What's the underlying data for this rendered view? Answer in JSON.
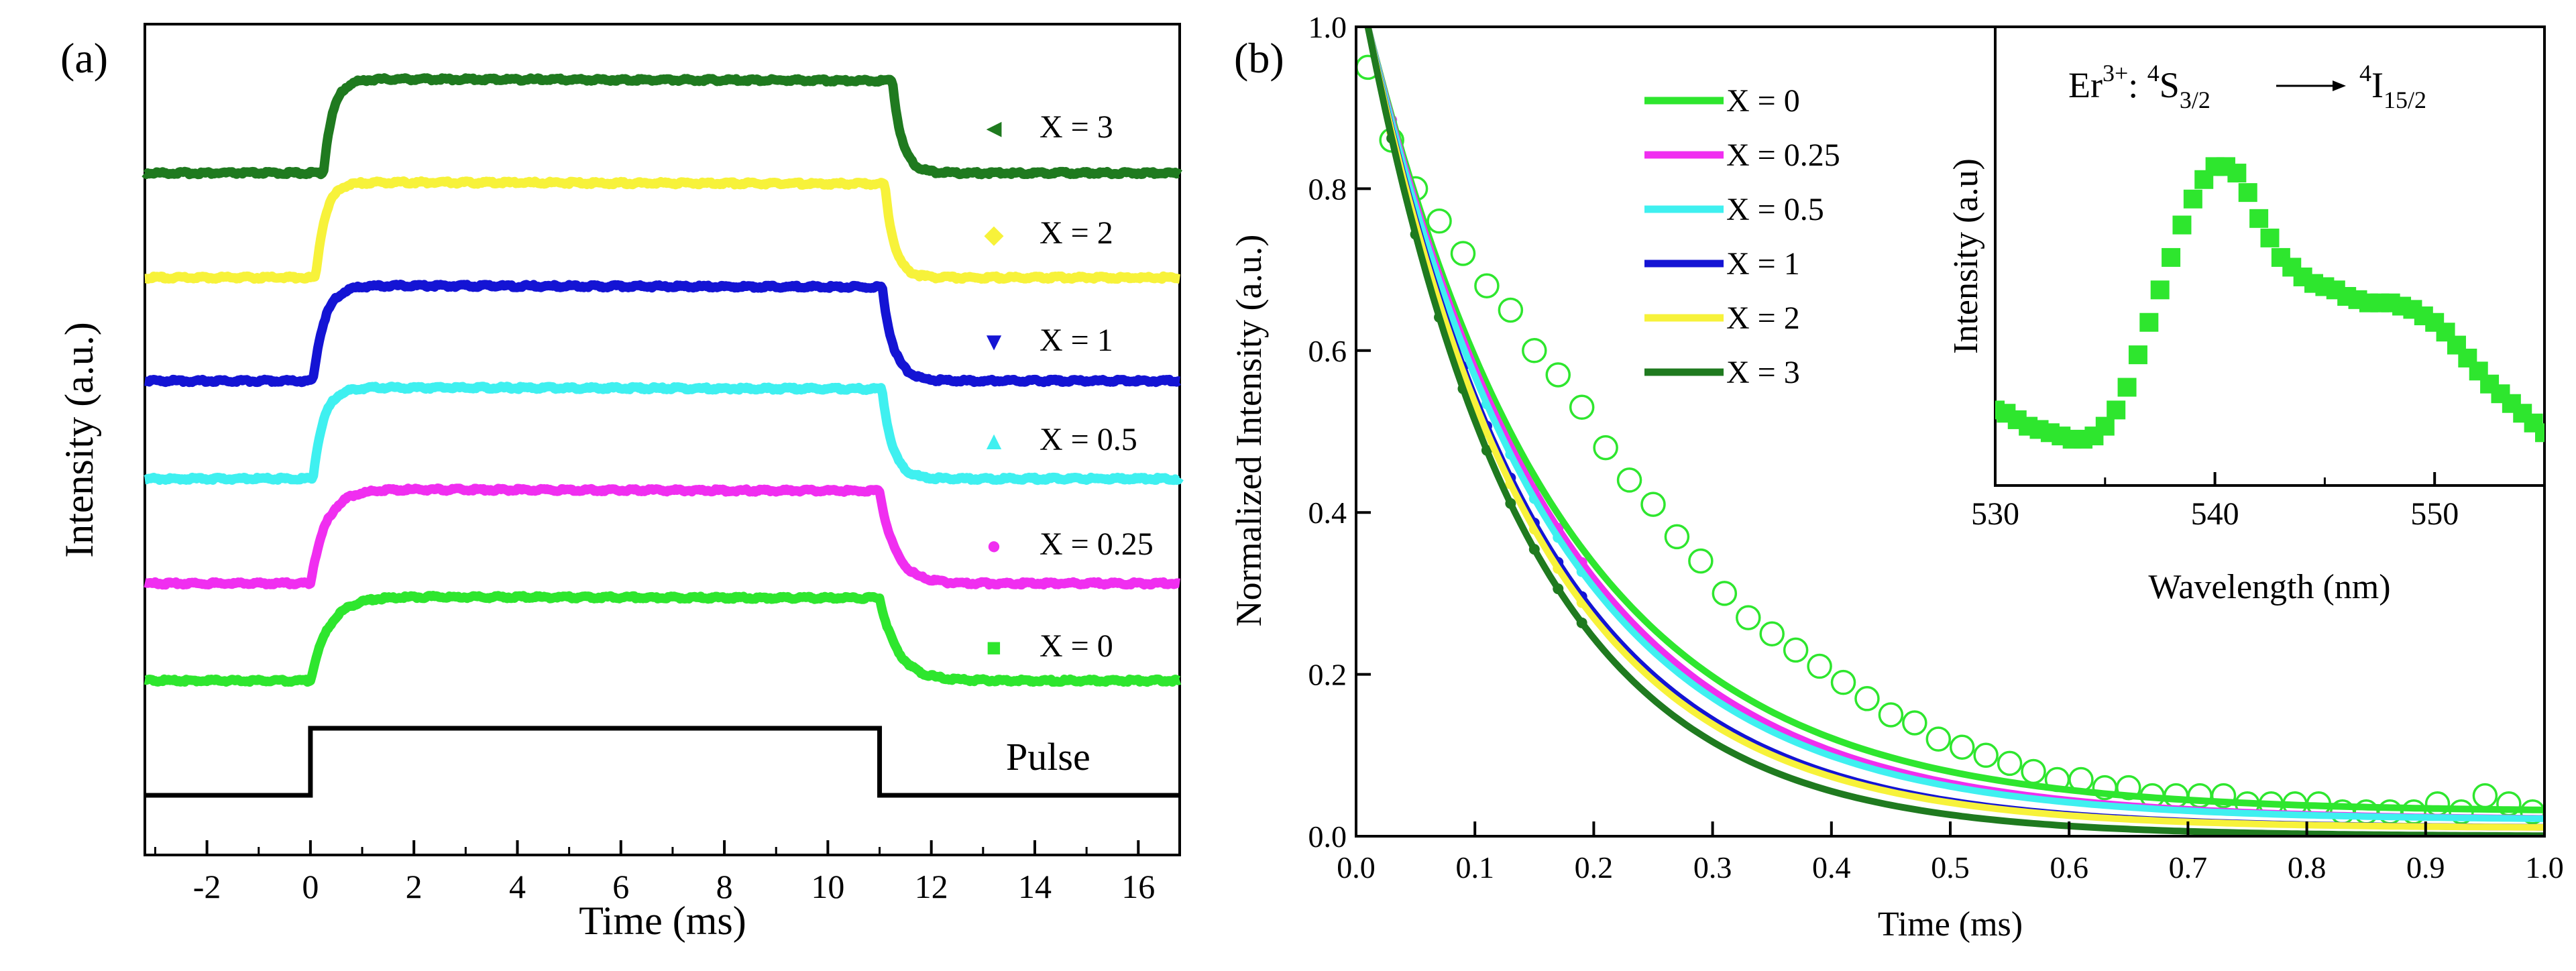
{
  "chart_data": [
    {
      "panel": "(a)",
      "type": "line",
      "title": "",
      "xlabel": "Time (ms)",
      "ylabel": "Intensity (a.u.)",
      "xlim": [
        -3.2,
        16.8
      ],
      "xticks": [
        -2,
        0,
        2,
        4,
        6,
        8,
        10,
        12,
        14,
        16
      ],
      "pulse": {
        "label": "Pulse",
        "on": 0,
        "off": 11,
        "color": "#000000"
      },
      "series": [
        {
          "name": "X = 3",
          "legend": "X = 3",
          "marker": "◄",
          "color": "#1f7a1f",
          "rise_start": 0.25,
          "fall_start": 11.25,
          "tau": 0.18
        },
        {
          "name": "X = 2",
          "legend": "X = 2",
          "marker": "◆",
          "color": "#f7f23a",
          "rise_start": 0.1,
          "fall_start": 11.1,
          "tau": 0.18
        },
        {
          "name": "X = 1",
          "legend": "X = 1",
          "marker": "▼",
          "color": "#1414d4",
          "rise_start": 0.05,
          "fall_start": 11.05,
          "tau": 0.22
        },
        {
          "name": "X = 0.5",
          "legend": "X = 0.5",
          "marker": "▲",
          "color": "#3ff0f0",
          "rise_start": 0.05,
          "fall_start": 11.05,
          "tau": 0.2
        },
        {
          "name": "X = 0.25",
          "legend": "X = 0.25",
          "marker": "●",
          "color": "#f02ef0",
          "rise_start": 0.0,
          "fall_start": 11.0,
          "tau": 0.3
        },
        {
          "name": "X = 0",
          "legend": "X = 0",
          "marker": "■",
          "color": "#2ee62e",
          "rise_start": 0.0,
          "fall_start": 11.0,
          "tau": 0.35
        }
      ]
    },
    {
      "panel": "(b)",
      "type": "line",
      "title": "",
      "xlabel": "Time (ms)",
      "ylabel": "Normalized Intensity (a.u.)",
      "xlim": [
        0.0,
        1.0
      ],
      "ylim": [
        0.0,
        1.0
      ],
      "xticks": [
        0.0,
        0.1,
        0.2,
        0.3,
        0.4,
        0.5,
        0.6,
        0.7,
        0.8,
        0.9,
        1.0
      ],
      "yticks": [
        0.0,
        0.2,
        0.4,
        0.6,
        0.8,
        1.0
      ],
      "series": [
        {
          "name": "X = 0",
          "color": "#2ee62e",
          "tau_ms": 0.165,
          "offset": 0.03
        },
        {
          "name": "X = 0.25",
          "color": "#f02ef0",
          "tau_ms": 0.16,
          "offset": 0.02
        },
        {
          "name": "X = 0.5",
          "color": "#3ff0f0",
          "tau_ms": 0.155,
          "offset": 0.02
        },
        {
          "name": "X = 1",
          "color": "#1414d4",
          "tau_ms": 0.145,
          "offset": 0.01
        },
        {
          "name": "X = 2",
          "color": "#f7f23a",
          "tau_ms": 0.142,
          "offset": 0.01
        },
        {
          "name": "X = 3",
          "color": "#1f7a1f",
          "tau_ms": 0.135,
          "offset": 0.0
        }
      ],
      "scatter_samples": [
        {
          "series": "X = 0",
          "x": [
            0.01,
            0.03,
            0.05,
            0.07,
            0.09,
            0.11,
            0.13,
            0.15,
            0.17,
            0.19,
            0.21,
            0.23,
            0.25,
            0.27,
            0.29,
            0.31,
            0.33,
            0.35,
            0.37,
            0.39,
            0.41,
            0.43,
            0.45,
            0.47,
            0.49,
            0.51,
            0.53,
            0.55,
            0.57,
            0.59,
            0.61,
            0.63,
            0.65,
            0.67,
            0.69,
            0.71,
            0.73,
            0.75,
            0.77,
            0.79,
            0.81,
            0.83,
            0.85,
            0.87,
            0.89,
            0.91,
            0.93,
            0.95,
            0.97,
            0.99
          ],
          "y": [
            0.95,
            0.86,
            0.8,
            0.76,
            0.72,
            0.68,
            0.65,
            0.6,
            0.57,
            0.53,
            0.48,
            0.44,
            0.41,
            0.37,
            0.34,
            0.3,
            0.27,
            0.25,
            0.23,
            0.21,
            0.19,
            0.17,
            0.15,
            0.14,
            0.12,
            0.11,
            0.1,
            0.09,
            0.08,
            0.07,
            0.07,
            0.06,
            0.06,
            0.05,
            0.05,
            0.05,
            0.05,
            0.04,
            0.04,
            0.04,
            0.04,
            0.03,
            0.03,
            0.03,
            0.03,
            0.04,
            0.03,
            0.05,
            0.04,
            0.03
          ]
        }
      ],
      "inset": {
        "type": "line",
        "annotation": {
          "ion": "Er",
          "charge": "3+",
          "from_sup": "4",
          "from_term": "S",
          "from_sub": "3/2",
          "to_sup": "4",
          "to_term": "I",
          "to_sub": "15/2"
        },
        "xlabel": "Wavelength (nm)",
        "ylabel": "Intensity (a.u)",
        "xlim": [
          530,
          555
        ],
        "ylim": [
          0,
          1
        ],
        "xticks": [
          530,
          540,
          550
        ],
        "color": "#2ee62e",
        "x": [
          530,
          530.5,
          531,
          531.5,
          532,
          532.5,
          533,
          533.5,
          534,
          534.5,
          535,
          535.5,
          536,
          536.5,
          537,
          537.5,
          538,
          538.5,
          539,
          539.5,
          540,
          540.5,
          541,
          541.5,
          542,
          542.5,
          543,
          543.5,
          544,
          544.5,
          545,
          545.5,
          546,
          546.5,
          547,
          547.5,
          548,
          548.5,
          549,
          549.5,
          550,
          550.5,
          551,
          551.5,
          552,
          552.5,
          553,
          553.5,
          554,
          554.5,
          555
        ],
        "y": [
          0.15,
          0.14,
          0.12,
          0.1,
          0.09,
          0.08,
          0.07,
          0.06,
          0.06,
          0.07,
          0.1,
          0.15,
          0.22,
          0.32,
          0.42,
          0.52,
          0.62,
          0.72,
          0.8,
          0.86,
          0.9,
          0.9,
          0.88,
          0.82,
          0.74,
          0.68,
          0.62,
          0.59,
          0.56,
          0.54,
          0.53,
          0.52,
          0.5,
          0.49,
          0.48,
          0.48,
          0.48,
          0.47,
          0.46,
          0.44,
          0.42,
          0.39,
          0.35,
          0.31,
          0.27,
          0.23,
          0.2,
          0.17,
          0.14,
          0.11,
          0.08
        ]
      }
    }
  ]
}
